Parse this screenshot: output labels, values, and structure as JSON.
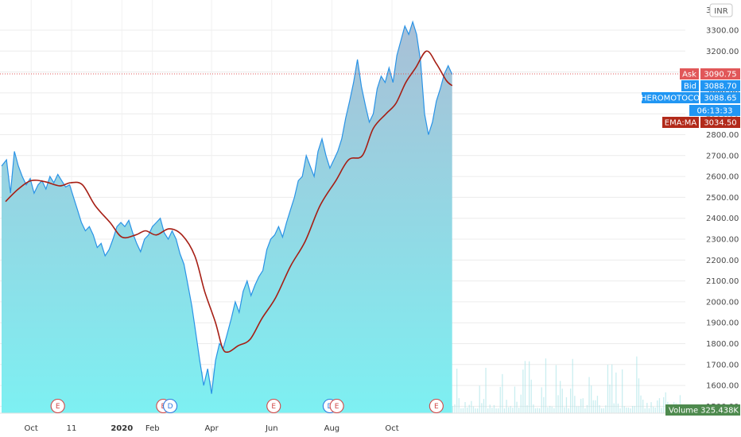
{
  "colors": {
    "price_line": "#2a93e6",
    "area_top": "#a9bfd6",
    "area_bottom": "#7df0f2",
    "ema": "#a61e14",
    "ask": "#e15759",
    "bid": "#2196f3",
    "ema_tag": "#b22a1a",
    "volume_tag": "#4e8a4e",
    "event_e": "#d04848",
    "event_d": "#2f7ae0"
  },
  "currency": "INR",
  "chart_data": {
    "type": "area",
    "symbol": "HEROMOTOCO",
    "ylim": [
      1480,
      3400
    ],
    "y_ticks": [
      1500,
      1600,
      1700,
      1800,
      1900,
      2000,
      2100,
      2200,
      2300,
      2400,
      2500,
      2600,
      2700,
      2800,
      2900,
      3000,
      3100,
      3200,
      3300
    ],
    "y_tick_labels": [
      "1500.00",
      "1600.00",
      "1700.00",
      "1800.00",
      "1900.00",
      "2000.00",
      "2100.00",
      "2200.00",
      "2300.00",
      "2400.00",
      "2500.00",
      "2600.00",
      "2700.00",
      "2800.00",
      "2900.00",
      "3000.00",
      "3100.00",
      "3200.00",
      "3300.00"
    ],
    "top_partial_label": "34",
    "x_labels": [
      {
        "label": "Oct",
        "date": "2019-10-01",
        "bold": false
      },
      {
        "label": "11",
        "date": "2019-11-11",
        "bold": false
      },
      {
        "label": "2020",
        "date": "2020-01-01",
        "bold": true
      },
      {
        "label": "Feb",
        "date": "2020-02-01",
        "bold": false
      },
      {
        "label": "Apr",
        "date": "2020-04-01",
        "bold": false
      },
      {
        "label": "Jun",
        "date": "2020-06-01",
        "bold": false
      },
      {
        "label": "Aug",
        "date": "2020-08-01",
        "bold": false
      },
      {
        "label": "Oct",
        "date": "2020-10-01",
        "bold": false
      }
    ],
    "series": [
      {
        "type": "area",
        "points": [
          [
            "2019-09-01",
            2650
          ],
          [
            "2019-09-06",
            2680
          ],
          [
            "2019-09-10",
            2520
          ],
          [
            "2019-09-14",
            2720
          ],
          [
            "2019-09-18",
            2650
          ],
          [
            "2019-09-22",
            2600
          ],
          [
            "2019-09-26",
            2560
          ],
          [
            "2019-09-30",
            2590
          ],
          [
            "2019-10-04",
            2520
          ],
          [
            "2019-10-08",
            2560
          ],
          [
            "2019-10-12",
            2580
          ],
          [
            "2019-10-16",
            2540
          ],
          [
            "2019-10-20",
            2600
          ],
          [
            "2019-10-24",
            2570
          ],
          [
            "2019-10-28",
            2610
          ],
          [
            "2019-11-01",
            2580
          ],
          [
            "2019-11-05",
            2550
          ],
          [
            "2019-11-09",
            2560
          ],
          [
            "2019-11-13",
            2500
          ],
          [
            "2019-11-17",
            2440
          ],
          [
            "2019-11-21",
            2380
          ],
          [
            "2019-11-25",
            2340
          ],
          [
            "2019-11-29",
            2360
          ],
          [
            "2019-12-03",
            2320
          ],
          [
            "2019-12-07",
            2260
          ],
          [
            "2019-12-11",
            2280
          ],
          [
            "2019-12-15",
            2220
          ],
          [
            "2019-12-19",
            2250
          ],
          [
            "2019-12-23",
            2300
          ],
          [
            "2019-12-27",
            2360
          ],
          [
            "2019-12-31",
            2380
          ],
          [
            "2020-01-04",
            2360
          ],
          [
            "2020-01-08",
            2390
          ],
          [
            "2020-01-12",
            2330
          ],
          [
            "2020-01-16",
            2280
          ],
          [
            "2020-01-20",
            2240
          ],
          [
            "2020-01-24",
            2300
          ],
          [
            "2020-01-28",
            2320
          ],
          [
            "2020-02-01",
            2360
          ],
          [
            "2020-02-05",
            2380
          ],
          [
            "2020-02-09",
            2400
          ],
          [
            "2020-02-13",
            2330
          ],
          [
            "2020-02-17",
            2300
          ],
          [
            "2020-02-21",
            2340
          ],
          [
            "2020-02-25",
            2300
          ],
          [
            "2020-02-29",
            2230
          ],
          [
            "2020-03-04",
            2180
          ],
          [
            "2020-03-08",
            2080
          ],
          [
            "2020-03-12",
            1980
          ],
          [
            "2020-03-16",
            1850
          ],
          [
            "2020-03-20",
            1720
          ],
          [
            "2020-03-24",
            1600
          ],
          [
            "2020-03-28",
            1680
          ],
          [
            "2020-04-01",
            1560
          ],
          [
            "2020-04-05",
            1720
          ],
          [
            "2020-04-09",
            1800
          ],
          [
            "2020-04-13",
            1780
          ],
          [
            "2020-04-17",
            1850
          ],
          [
            "2020-04-21",
            1920
          ],
          [
            "2020-04-25",
            2000
          ],
          [
            "2020-04-29",
            1950
          ],
          [
            "2020-05-03",
            2050
          ],
          [
            "2020-05-07",
            2100
          ],
          [
            "2020-05-11",
            2030
          ],
          [
            "2020-05-15",
            2080
          ],
          [
            "2020-05-19",
            2120
          ],
          [
            "2020-05-23",
            2150
          ],
          [
            "2020-05-27",
            2250
          ],
          [
            "2020-05-31",
            2300
          ],
          [
            "2020-06-04",
            2320
          ],
          [
            "2020-06-08",
            2360
          ],
          [
            "2020-06-12",
            2310
          ],
          [
            "2020-06-16",
            2380
          ],
          [
            "2020-06-20",
            2440
          ],
          [
            "2020-06-24",
            2500
          ],
          [
            "2020-06-28",
            2580
          ],
          [
            "2020-07-02",
            2600
          ],
          [
            "2020-07-06",
            2700
          ],
          [
            "2020-07-10",
            2650
          ],
          [
            "2020-07-14",
            2600
          ],
          [
            "2020-07-18",
            2720
          ],
          [
            "2020-07-22",
            2780
          ],
          [
            "2020-07-26",
            2700
          ],
          [
            "2020-07-30",
            2640
          ],
          [
            "2020-08-03",
            2680
          ],
          [
            "2020-08-07",
            2720
          ],
          [
            "2020-08-11",
            2780
          ],
          [
            "2020-08-15",
            2880
          ],
          [
            "2020-08-19",
            2960
          ],
          [
            "2020-08-23",
            3050
          ],
          [
            "2020-08-27",
            3160
          ],
          [
            "2020-08-31",
            3030
          ],
          [
            "2020-09-04",
            2940
          ],
          [
            "2020-09-08",
            2860
          ],
          [
            "2020-09-12",
            2900
          ],
          [
            "2020-09-16",
            3020
          ],
          [
            "2020-09-20",
            3080
          ],
          [
            "2020-09-24",
            3050
          ],
          [
            "2020-09-28",
            3120
          ],
          [
            "2020-10-02",
            3050
          ],
          [
            "2020-10-06",
            3180
          ],
          [
            "2020-10-10",
            3250
          ],
          [
            "2020-10-14",
            3320
          ],
          [
            "2020-10-18",
            3280
          ],
          [
            "2020-10-22",
            3340
          ],
          [
            "2020-10-26",
            3280
          ],
          [
            "2020-10-30",
            3150
          ],
          [
            "2020-11-03",
            2900
          ],
          [
            "2020-11-07",
            2800
          ],
          [
            "2020-11-11",
            2860
          ],
          [
            "2020-11-15",
            2960
          ],
          [
            "2020-11-19",
            3020
          ],
          [
            "2020-11-23",
            3090
          ],
          [
            "2020-11-27",
            3130
          ],
          [
            "2020-12-01",
            3088.65
          ]
        ]
      },
      {
        "type": "line",
        "points": [
          [
            "2019-09-05",
            2480
          ],
          [
            "2019-09-18",
            2540
          ],
          [
            "2019-10-01",
            2580
          ],
          [
            "2019-10-15",
            2575
          ],
          [
            "2019-10-30",
            2555
          ],
          [
            "2019-11-10",
            2570
          ],
          [
            "2019-11-22",
            2560
          ],
          [
            "2019-12-05",
            2460
          ],
          [
            "2019-12-20",
            2380
          ],
          [
            "2020-01-01",
            2310
          ],
          [
            "2020-01-15",
            2320
          ],
          [
            "2020-01-25",
            2340
          ],
          [
            "2020-02-05",
            2320
          ],
          [
            "2020-02-18",
            2350
          ],
          [
            "2020-03-02",
            2320
          ],
          [
            "2020-03-15",
            2220
          ],
          [
            "2020-03-25",
            2050
          ],
          [
            "2020-04-05",
            1900
          ],
          [
            "2020-04-12",
            1780
          ],
          [
            "2020-04-18",
            1760
          ],
          [
            "2020-04-28",
            1790
          ],
          [
            "2020-05-10",
            1820
          ],
          [
            "2020-05-22",
            1920
          ],
          [
            "2020-06-05",
            2020
          ],
          [
            "2020-06-20",
            2170
          ],
          [
            "2020-07-05",
            2290
          ],
          [
            "2020-07-20",
            2460
          ],
          [
            "2020-08-05",
            2580
          ],
          [
            "2020-08-18",
            2680
          ],
          [
            "2020-09-01",
            2700
          ],
          [
            "2020-09-12",
            2830
          ],
          [
            "2020-09-25",
            2900
          ],
          [
            "2020-10-05",
            2950
          ],
          [
            "2020-10-15",
            3050
          ],
          [
            "2020-10-25",
            3120
          ],
          [
            "2020-11-05",
            3200
          ],
          [
            "2020-11-15",
            3140
          ],
          [
            "2020-11-25",
            3060
          ],
          [
            "2020-12-01",
            3034.5
          ]
        ]
      }
    ],
    "events": [
      {
        "label": "E",
        "date": "2019-10-28"
      },
      {
        "label": "E",
        "date": "2020-02-12"
      },
      {
        "label": "D",
        "date": "2020-02-19"
      },
      {
        "label": "E",
        "date": "2020-06-03"
      },
      {
        "label": "D",
        "date": "2020-07-30"
      },
      {
        "label": "E",
        "date": "2020-08-06"
      },
      {
        "label": "E",
        "date": "2020-11-15"
      }
    ],
    "price_tags": [
      {
        "label": "Ask",
        "value_text": "3090.75",
        "value": 3090.75,
        "color": "#e15759"
      },
      {
        "label": "Bid",
        "value_text": "3088.70",
        "color": "#2196f3"
      },
      {
        "label": "HEROMOTOCO",
        "value_text": "3088.65",
        "color": "#2196f3"
      },
      {
        "label": "",
        "value_text": "06:13:33",
        "color": "#2196f3"
      },
      {
        "label": "EMA:MA",
        "value_text": "3034.50",
        "color": "#b22a1a"
      }
    ],
    "volume_tag": {
      "label": "Volume",
      "value_text": "325.438K"
    },
    "ask_line": true,
    "grid": true
  }
}
